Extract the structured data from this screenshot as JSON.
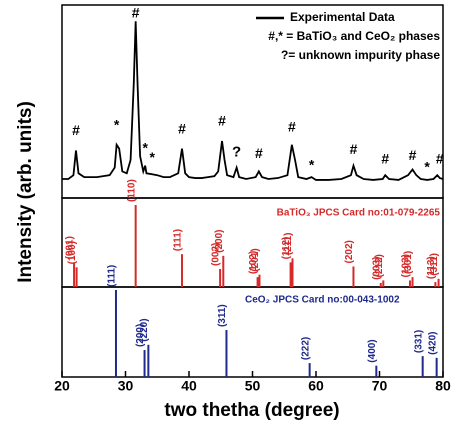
{
  "chart_data": [
    {
      "type": "line",
      "ylabel": "Intensity (arb. units)",
      "x": [
        20,
        21,
        21.8,
        22.2,
        22.6,
        23.5,
        24.5,
        25.5,
        26.5,
        27.5,
        28.3,
        28.6,
        29.0,
        29.5,
        30.2,
        30.8,
        31.3,
        31.6,
        31.9,
        32.3,
        32.8,
        33.1,
        33.3,
        34.2,
        35,
        36,
        37,
        38.3,
        38.9,
        39.4,
        40,
        41,
        42,
        43,
        44,
        44.6,
        45.2,
        45.6,
        46,
        47,
        47.5,
        47.9,
        49,
        50.5,
        51,
        51.5,
        52.5,
        54,
        55.5,
        56.2,
        56.7,
        57.2,
        58.5,
        59.3,
        60,
        62,
        64,
        65.5,
        65.9,
        66.4,
        67.5,
        69,
        70.5,
        70.9,
        71.5,
        73,
        74.5,
        75.2,
        75.8,
        76.5,
        77.5,
        78.5,
        79.1,
        79.5,
        80
      ],
      "series": [
        {
          "name": "Experimental Data",
          "color": "#000000",
          "values": [
            10,
            10,
            12,
            25,
            13,
            11,
            11,
            11,
            11.5,
            12,
            16,
            28,
            26,
            14,
            13,
            20,
            60,
            93,
            60,
            22,
            14,
            17,
            13,
            12.5,
            12,
            11,
            11,
            13,
            26,
            13,
            11,
            10.5,
            10.5,
            11,
            11.5,
            14,
            30,
            20,
            12,
            11,
            16,
            11,
            10,
            11,
            14,
            11,
            10,
            10.5,
            12,
            28,
            20,
            11,
            10,
            11,
            9.5,
            9.5,
            10,
            12,
            17,
            12,
            10,
            9.5,
            10,
            12,
            10,
            9.5,
            12,
            15,
            12,
            10,
            9.5,
            10,
            12,
            10.5,
            10
          ]
        }
      ],
      "annotations": [
        {
          "text": "#",
          "x": 22.2,
          "y": 35
        },
        {
          "text": "*",
          "x": 28.6,
          "y": 38
        },
        {
          "text": "#",
          "x": 31.6,
          "y": 97
        },
        {
          "text": "*",
          "x": 33.1,
          "y": 26
        },
        {
          "text": "*",
          "x": 34.2,
          "y": 21
        },
        {
          "text": "#",
          "x": 38.9,
          "y": 36
        },
        {
          "text": "#",
          "x": 45.2,
          "y": 40
        },
        {
          "text": "?",
          "x": 47.5,
          "y": 24
        },
        {
          "text": "#",
          "x": 51,
          "y": 23
        },
        {
          "text": "#",
          "x": 56.2,
          "y": 37
        },
        {
          "text": "*",
          "x": 59.3,
          "y": 17
        },
        {
          "text": "#",
          "x": 65.9,
          "y": 25
        },
        {
          "text": "#",
          "x": 70.9,
          "y": 20
        },
        {
          "text": "#",
          "x": 75.2,
          "y": 22
        },
        {
          "text": "*",
          "x": 77.5,
          "y": 16
        },
        {
          "text": "#",
          "x": 79.5,
          "y": 20
        }
      ],
      "notes": [
        "#,* = BaTiO₃ and CeO₂ phases",
        "?= unknown impurity phase"
      ],
      "xlim": [
        20,
        80
      ],
      "ylim": [
        0,
        100
      ]
    },
    {
      "type": "stem",
      "title": "BaTiO₃ JPCS Card no:01-079-2265",
      "color": "#d42a2a",
      "labels": [
        "(001)",
        "(100)",
        "(110)",
        "(111)",
        "(002)",
        "(200)",
        "(102)",
        "(201)",
        "(112)",
        "(211)",
        "(202)",
        "(003)",
        "(212)",
        "(103)",
        "(301)",
        "(113)",
        "(311)"
      ],
      "x": [
        21.9,
        22.3,
        31.6,
        38.9,
        44.9,
        45.4,
        50.8,
        51.1,
        56.0,
        56.3,
        65.9,
        70.2,
        70.6,
        74.8,
        75.2,
        78.8,
        79.3
      ],
      "values": [
        30,
        24,
        100,
        40,
        22,
        38,
        12,
        15,
        30,
        35,
        25,
        5,
        8,
        8,
        12,
        6,
        10
      ],
      "xlim": [
        20,
        80
      ],
      "ylim": [
        0,
        100
      ]
    },
    {
      "type": "stem",
      "title": "CeO₂ JPCS Card no:00-043-1002",
      "color": "#1f2a8c",
      "labels": [
        "(111)",
        "(200)",
        "(220)",
        "(311)",
        "(222)",
        "(400)",
        "(331)",
        "(420)"
      ],
      "x": [
        28.5,
        33.0,
        33.6,
        45.9,
        59.0,
        69.5,
        76.8,
        79.0
      ],
      "values": [
        100,
        31,
        37,
        54,
        16,
        13,
        24,
        22
      ],
      "xlim": [
        20,
        80
      ],
      "ylim": [
        0,
        100
      ],
      "xlabel": "two thetha (degree)",
      "xticks": [
        20,
        30,
        40,
        50,
        60,
        70,
        80
      ]
    }
  ]
}
